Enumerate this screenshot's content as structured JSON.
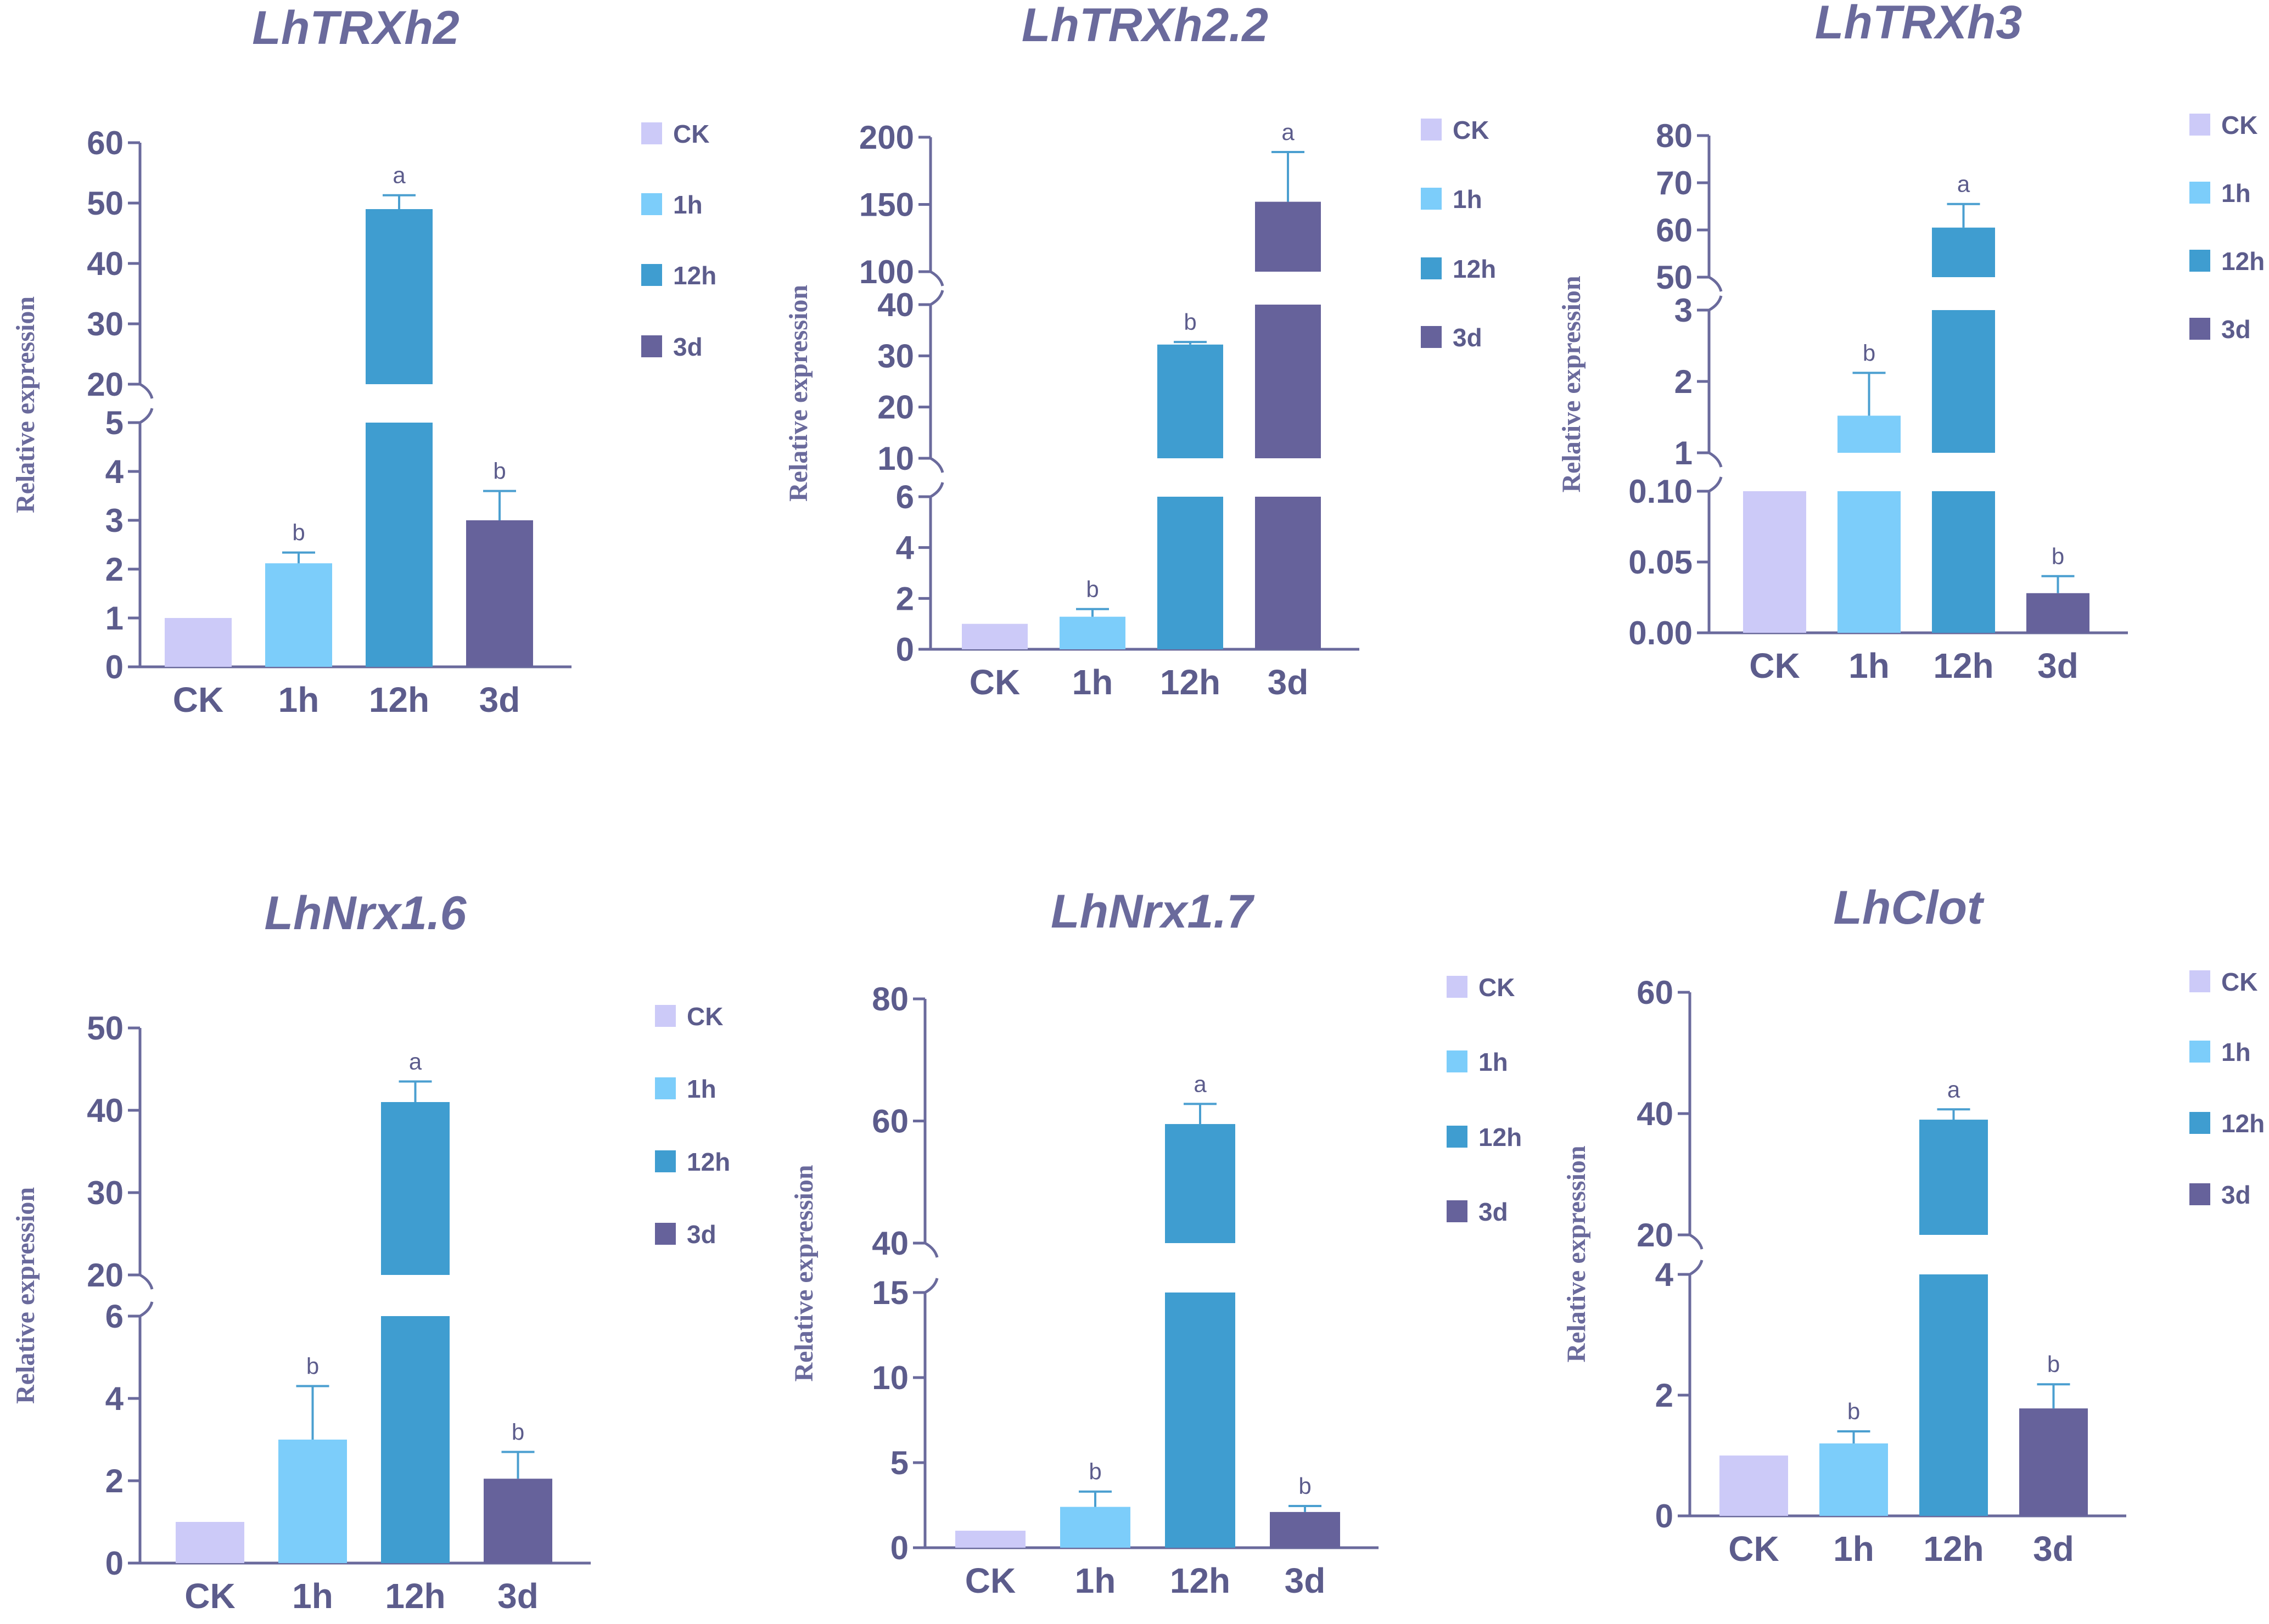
{
  "chart_data": [
    {
      "type": "bar",
      "title": "LhTRXh2",
      "ylabel": "Relative expression",
      "categories": [
        "CK",
        "1h",
        "12h",
        "3d"
      ],
      "values": [
        1,
        2.12,
        49,
        3.0
      ],
      "errors": [
        0,
        0.22,
        2.3,
        0.6
      ],
      "significance": [
        "",
        "b",
        "a",
        "b"
      ],
      "segments": [
        {
          "range": [
            0,
            5
          ],
          "ticks": [
            0,
            1,
            2,
            3,
            4,
            5
          ],
          "tick_labels": [
            "0",
            "1",
            "2",
            "3",
            "4",
            "5"
          ]
        },
        {
          "range": [
            20,
            60
          ],
          "ticks": [
            20,
            30,
            40,
            50,
            60
          ],
          "tick_labels": [
            "20",
            "30",
            "40",
            "50",
            "60"
          ]
        }
      ],
      "legend": [
        "CK",
        "1h",
        "12h",
        "3d"
      ]
    },
    {
      "type": "bar",
      "title": "LhTRXh2.2",
      "ylabel": "Relative expression",
      "categories": [
        "CK",
        "1h",
        "12h",
        "3d"
      ],
      "values": [
        1,
        1.28,
        32.2,
        152
      ],
      "errors": [
        0,
        0.3,
        0.5,
        37
      ],
      "significance": [
        "",
        "b",
        "b",
        "a"
      ],
      "segments": [
        {
          "range": [
            0,
            6
          ],
          "ticks": [
            0,
            2,
            4,
            6
          ],
          "tick_labels": [
            "0",
            "2",
            "4",
            "6"
          ]
        },
        {
          "range": [
            10,
            40
          ],
          "ticks": [
            10,
            20,
            30,
            40
          ],
          "tick_labels": [
            "10",
            "20",
            "30",
            "40"
          ]
        },
        {
          "range": [
            100,
            200
          ],
          "ticks": [
            100,
            150,
            200
          ],
          "tick_labels": [
            "100",
            "150",
            "200"
          ]
        }
      ],
      "legend": [
        "CK",
        "1h",
        "12h",
        "3d"
      ]
    },
    {
      "type": "bar",
      "title": "LhTRXh3",
      "ylabel": "Relative expression",
      "categories": [
        "CK",
        "1h",
        "12h",
        "3d"
      ],
      "values": [
        1,
        1.52,
        60.5,
        0.028
      ],
      "errors": [
        0,
        0.6,
        5,
        0.012
      ],
      "significance": [
        "",
        "b",
        "a",
        "b"
      ],
      "segments": [
        {
          "range": [
            0,
            0.1
          ],
          "ticks": [
            0,
            0.05,
            0.1
          ],
          "tick_labels": [
            "0.00",
            "0.05",
            "0.10"
          ]
        },
        {
          "range": [
            1,
            3
          ],
          "ticks": [
            1,
            2,
            3
          ],
          "tick_labels": [
            "1",
            "2",
            "3"
          ]
        },
        {
          "range": [
            50,
            80
          ],
          "ticks": [
            50,
            60,
            70,
            80
          ],
          "tick_labels": [
            "50",
            "60",
            "70",
            "80"
          ]
        }
      ],
      "legend": [
        "CK",
        "1h",
        "12h",
        "3d"
      ]
    },
    {
      "type": "bar",
      "title": "LhNrx1.6",
      "ylabel": "Relative expression",
      "categories": [
        "CK",
        "1h",
        "12h",
        "3d"
      ],
      "values": [
        1,
        3.0,
        41,
        2.05
      ],
      "errors": [
        0,
        1.3,
        2.5,
        0.65
      ],
      "significance": [
        "",
        "b",
        "a",
        "b"
      ],
      "segments": [
        {
          "range": [
            0,
            6
          ],
          "ticks": [
            0,
            2,
            4,
            6
          ],
          "tick_labels": [
            "0",
            "2",
            "4",
            "6"
          ]
        },
        {
          "range": [
            20,
            50
          ],
          "ticks": [
            20,
            30,
            40,
            50
          ],
          "tick_labels": [
            "20",
            "30",
            "40",
            "50"
          ]
        }
      ],
      "legend": [
        "CK",
        "1h",
        "12h",
        "3d"
      ]
    },
    {
      "type": "bar",
      "title": "LhNrx1.7",
      "ylabel": "Relative expression",
      "categories": [
        "CK",
        "1h",
        "12h",
        "3d"
      ],
      "values": [
        1,
        2.4,
        59.5,
        2.1
      ],
      "errors": [
        0,
        0.9,
        3.3,
        0.35
      ],
      "significance": [
        "",
        "b",
        "a",
        "b"
      ],
      "segments": [
        {
          "range": [
            0,
            15
          ],
          "ticks": [
            0,
            5,
            10,
            15
          ],
          "tick_labels": [
            "0",
            "5",
            "10",
            "15"
          ]
        },
        {
          "range": [
            40,
            80
          ],
          "ticks": [
            40,
            60,
            80
          ],
          "tick_labels": [
            "40",
            "60",
            "80"
          ]
        }
      ],
      "legend": [
        "CK",
        "1h",
        "12h",
        "3d"
      ]
    },
    {
      "type": "bar",
      "title": "LhClot",
      "ylabel": "Relative expression",
      "categories": [
        "CK",
        "1h",
        "12h",
        "3d"
      ],
      "values": [
        1,
        1.2,
        39,
        1.78
      ],
      "errors": [
        0,
        0.2,
        1.7,
        0.4
      ],
      "significance": [
        "",
        "b",
        "a",
        "b"
      ],
      "segments": [
        {
          "range": [
            0,
            4
          ],
          "ticks": [
            0,
            2,
            4
          ],
          "tick_labels": [
            "0",
            "2",
            "4"
          ]
        },
        {
          "range": [
            20,
            60
          ],
          "ticks": [
            20,
            40,
            60
          ],
          "tick_labels": [
            "20",
            "40",
            "60"
          ]
        }
      ],
      "legend": [
        "CK",
        "1h",
        "12h",
        "3d"
      ]
    }
  ],
  "colors": {
    "CK": "#cccaf8",
    "1h": "#7ccdfa",
    "12h": "#3f9dd0",
    "3d": "#66629b",
    "axis": "#6a6a9c",
    "error_bar": "#4b9fd0"
  }
}
